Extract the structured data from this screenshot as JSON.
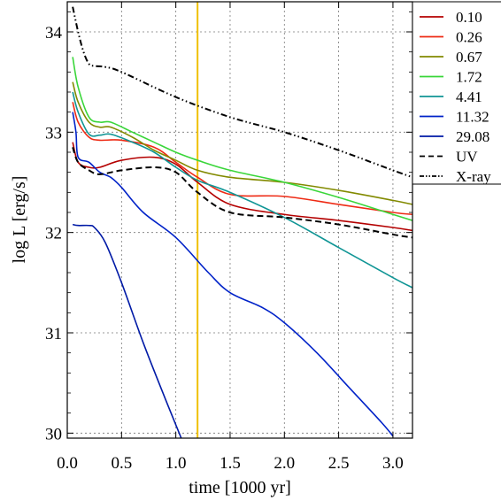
{
  "chart_data": {
    "type": "line",
    "title": "",
    "xlabel": "time [1000 yr]",
    "ylabel": "log L [erg/s]",
    "xlim": [
      0.0,
      3.18
    ],
    "ylim": [
      29.95,
      34.3
    ],
    "x_ticks": [
      0.0,
      0.5,
      1.0,
      1.5,
      2.0,
      2.5,
      3.0
    ],
    "x_tick_labels": [
      "0.0",
      "0.5",
      "1.0",
      "1.5",
      "2.0",
      "2.5",
      "3.0"
    ],
    "y_ticks": [
      30,
      31,
      32,
      33,
      34
    ],
    "y_tick_labels": [
      "30",
      "31",
      "32",
      "33",
      "34"
    ],
    "grid": true,
    "legend_position": "top-right",
    "vertical_line": {
      "x": 1.2,
      "color": "#f0c000"
    },
    "series": [
      {
        "name": "0.10",
        "color": "#b40000",
        "dash": "solid",
        "x": [
          0.05,
          0.1,
          0.2,
          0.3,
          0.5,
          0.8,
          1.0,
          1.2,
          1.5,
          2.0,
          2.5,
          3.0,
          3.18
        ],
        "y": [
          32.9,
          32.7,
          32.65,
          32.65,
          32.72,
          32.75,
          32.68,
          32.5,
          32.28,
          32.18,
          32.12,
          32.05,
          32.02
        ]
      },
      {
        "name": "0.26",
        "color": "#ee2a14",
        "dash": "solid",
        "x": [
          0.05,
          0.1,
          0.2,
          0.3,
          0.5,
          0.8,
          1.0,
          1.2,
          1.5,
          2.0,
          2.5,
          3.0,
          3.18
        ],
        "y": [
          33.3,
          33.1,
          32.95,
          32.92,
          32.92,
          32.85,
          32.7,
          32.55,
          32.38,
          32.36,
          32.28,
          32.2,
          32.18
        ]
      },
      {
        "name": "0.67",
        "color": "#828a00",
        "dash": "solid",
        "x": [
          0.05,
          0.1,
          0.2,
          0.3,
          0.4,
          0.6,
          0.8,
          1.0,
          1.2,
          1.5,
          2.0,
          2.5,
          3.0,
          3.18
        ],
        "y": [
          33.5,
          33.3,
          33.1,
          33.05,
          33.05,
          32.95,
          32.82,
          32.72,
          32.62,
          32.55,
          32.5,
          32.42,
          32.32,
          32.28
        ]
      },
      {
        "name": "1.72",
        "color": "#3ad63a",
        "dash": "solid",
        "x": [
          0.05,
          0.1,
          0.2,
          0.3,
          0.4,
          0.6,
          0.8,
          1.0,
          1.2,
          1.5,
          2.0,
          2.5,
          3.0,
          3.18
        ],
        "y": [
          33.75,
          33.45,
          33.15,
          33.1,
          33.1,
          33.0,
          32.9,
          32.8,
          32.72,
          32.62,
          32.5,
          32.35,
          32.18,
          32.12
        ]
      },
      {
        "name": "4.41",
        "color": "#109595",
        "dash": "solid",
        "x": [
          0.05,
          0.1,
          0.2,
          0.3,
          0.4,
          0.6,
          0.8,
          1.0,
          1.2,
          1.5,
          2.0,
          2.5,
          3.0,
          3.18
        ],
        "y": [
          33.4,
          33.2,
          32.98,
          32.97,
          32.98,
          32.9,
          32.8,
          32.65,
          32.52,
          32.4,
          32.15,
          31.85,
          31.55,
          31.45
        ]
      },
      {
        "name": "11.32",
        "color": "#0022c8",
        "dash": "solid",
        "x": [
          0.05,
          0.08,
          0.1,
          0.2,
          0.3,
          0.4,
          0.5,
          0.7,
          1.0,
          1.3,
          1.5,
          1.8,
          2.0,
          2.3,
          2.6,
          2.9,
          3.0
        ],
        "y": [
          33.2,
          33.0,
          32.75,
          32.7,
          32.6,
          32.55,
          32.45,
          32.2,
          31.95,
          31.6,
          31.4,
          31.25,
          31.1,
          30.8,
          30.45,
          30.1,
          29.97
        ]
      },
      {
        "name": "29.08",
        "color": "#001aa6",
        "dash": "solid",
        "x": [
          0.05,
          0.1,
          0.2,
          0.25,
          0.35,
          0.5,
          0.7,
          0.9,
          1.05
        ],
        "y": [
          32.08,
          32.07,
          32.07,
          32.05,
          31.9,
          31.5,
          30.9,
          30.35,
          29.95
        ]
      },
      {
        "name": "UV",
        "color": "#000000",
        "dash": "dashed",
        "x": [
          0.05,
          0.1,
          0.2,
          0.3,
          0.5,
          0.8,
          1.0,
          1.2,
          1.5,
          2.0,
          2.5,
          3.0,
          3.18
        ],
        "y": [
          32.85,
          32.7,
          32.62,
          32.58,
          32.62,
          32.65,
          32.6,
          32.4,
          32.2,
          32.15,
          32.08,
          31.98,
          31.95
        ]
      },
      {
        "name": "X-ray",
        "color": "#000000",
        "dash": "dashdotdot",
        "x": [
          0.05,
          0.1,
          0.15,
          0.2,
          0.25,
          0.35,
          0.5,
          1.0,
          1.5,
          2.0,
          2.5,
          3.0,
          3.18
        ],
        "y": [
          34.25,
          34.0,
          33.8,
          33.68,
          33.66,
          33.65,
          33.6,
          33.35,
          33.15,
          33.0,
          32.82,
          32.62,
          32.55
        ]
      }
    ]
  }
}
